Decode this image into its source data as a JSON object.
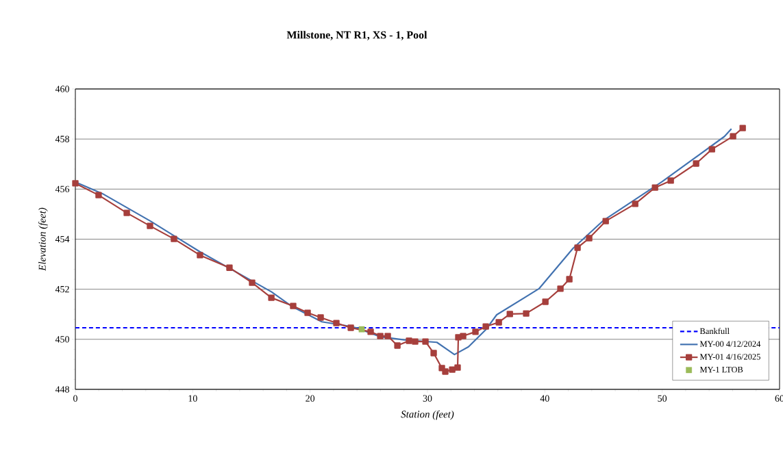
{
  "chart_data": {
    "type": "line",
    "title": "Millstone,  NT R1, XS - 1, Pool",
    "xlabel": "Station (feet)",
    "ylabel": "Elevation (feet)",
    "xlim": [
      0,
      60
    ],
    "xticks": [
      0,
      10,
      20,
      30,
      40,
      50,
      60
    ],
    "ylim": [
      448,
      460
    ],
    "yticks": [
      448,
      450,
      452,
      454,
      456,
      458,
      460
    ],
    "grid": "y",
    "legend": "bottom right",
    "series": [
      {
        "name": "Bankfull",
        "color": "#0000ff",
        "line_style": "dashed",
        "marker": "none",
        "x": [
          0,
          60
        ],
        "values": [
          450.46,
          450.46
        ]
      },
      {
        "name": "MY-00 4/12/2024",
        "color": "#4272b0",
        "line_style": "solid",
        "marker": "none",
        "x": [
          0,
          2.3,
          6.4,
          10.6,
          16.7,
          18.5,
          21,
          23,
          24,
          26,
          28,
          30.8,
          32.3,
          33.5,
          35,
          35.9,
          39.5,
          42.4,
          45,
          50,
          55.3,
          55.9
        ],
        "values": [
          456.28,
          455.82,
          454.72,
          453.5,
          451.9,
          451.3,
          450.7,
          450.55,
          450.45,
          450.1,
          449.98,
          449.88,
          449.39,
          449.7,
          450.4,
          450.98,
          452.02,
          453.63,
          454.75,
          456.3,
          458.1,
          458.41
        ]
      },
      {
        "name": "MY-01 4/16/2025",
        "color": "#a63f3c",
        "line_style": "solid",
        "marker": "square",
        "x": [
          0,
          1.98,
          4.38,
          6.36,
          8.4,
          10.62,
          13.13,
          15.06,
          16.7,
          18.56,
          19.79,
          20.9,
          22.24,
          23.47,
          25.16,
          25.98,
          26.62,
          27.44,
          28.43,
          28.95,
          29.83,
          30.53,
          31.23,
          31.52,
          32.11,
          32.57,
          32.63,
          33.04,
          34.09,
          34.97,
          36.08,
          37.02,
          38.41,
          40.05,
          41.33,
          42.09,
          42.79,
          43.78,
          45.19,
          47.7,
          49.39,
          50.73,
          52.89,
          54.24,
          56.04,
          56.86
        ],
        "values": [
          456.23,
          455.76,
          455.05,
          454.53,
          454.01,
          453.36,
          452.86,
          452.26,
          451.66,
          451.33,
          451.06,
          450.87,
          450.65,
          450.46,
          450.3,
          450.13,
          450.13,
          449.75,
          449.94,
          449.91,
          449.91,
          449.45,
          448.85,
          448.71,
          448.79,
          448.87,
          450.08,
          450.13,
          450.3,
          450.51,
          450.68,
          451.01,
          451.03,
          451.5,
          452.02,
          452.4,
          453.66,
          454.04,
          454.72,
          455.41,
          456.06,
          456.34,
          457.02,
          457.59,
          458.11,
          458.44
        ]
      },
      {
        "name": "MY-1 LTOB",
        "type": "scatter",
        "color": "#9bbb59",
        "marker": "square",
        "x": [
          24.4
        ],
        "values": [
          450.4
        ]
      }
    ]
  }
}
